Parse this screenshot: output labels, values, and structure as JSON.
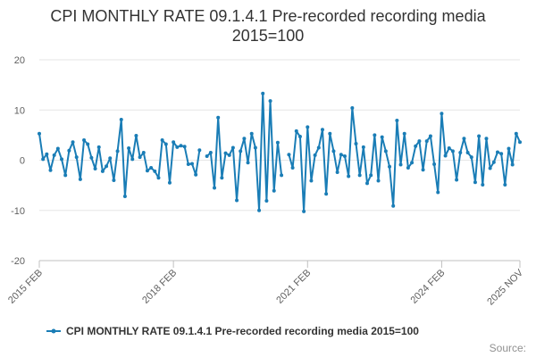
{
  "chart_data": {
    "type": "line",
    "title_lines": [
      "CPI MONTHLY RATE 09.1.4.1 Pre-recorded recording media",
      "2015=100"
    ],
    "ylim": [
      -20,
      20
    ],
    "yticks": [
      "20",
      "10",
      "0",
      "-10",
      "-20"
    ],
    "xtick_labels": [
      "2015 FEB",
      "2018 FEB",
      "2021 FEB",
      "2024 FEB",
      "2025 NOV"
    ],
    "xtick_month_index": [
      0,
      36,
      72,
      108,
      129
    ],
    "series": [
      {
        "name": "CPI MONTHLY RATE 09.1.4.1 Pre-recorded recording media 2015=100",
        "color": "#1a7db6",
        "start": "2015 FEB",
        "values": [
          5.3,
          0.2,
          1.2,
          -2.0,
          1.0,
          2.3,
          0.2,
          -3.0,
          1.9,
          3.6,
          0.6,
          -3.8,
          4.0,
          3.2,
          0.5,
          -1.7,
          2.6,
          -2.2,
          -1.2,
          0.4,
          -4.0,
          1.8,
          8.1,
          -7.2,
          2.4,
          0.2,
          4.9,
          0.6,
          1.5,
          -2.1,
          -1.5,
          -2.2,
          -3.5,
          4.0,
          3.2,
          -4.5,
          3.6,
          2.6,
          2.9,
          2.7,
          -0.8,
          -0.7,
          -2.9,
          2.0,
          null,
          0.8,
          1.5,
          -5.5,
          8.5,
          -3.5,
          1.4,
          1.0,
          2.5,
          -8.0,
          1.8,
          4.3,
          -0.5,
          5.3,
          2.5,
          -10.0,
          13.3,
          -8.1,
          11.8,
          -6.1,
          3.5,
          -3.0,
          null,
          1.1,
          -1.5,
          5.8,
          4.7,
          -10.2,
          6.6,
          -4.1,
          1.0,
          2.5,
          6.1,
          -6.7,
          5.3,
          1.8,
          -2.4,
          1.1,
          0.8,
          -3.2,
          10.4,
          3.3,
          -3.0,
          2.6,
          -4.6,
          -3.0,
          5.0,
          -4.1,
          4.6,
          1.8,
          -1.3,
          -9.1,
          7.9,
          -0.9,
          5.3,
          -1.5,
          -0.5,
          2.8,
          3.8,
          -1.9,
          3.8,
          4.8,
          -0.8,
          -6.4,
          9.3,
          0.9,
          2.4,
          1.8,
          -3.9,
          1.5,
          4.3,
          1.5,
          0.6,
          -4.4,
          4.8,
          -4.9,
          4.3,
          -1.6,
          -0.4,
          1.6,
          1.3,
          -4.9,
          2.3,
          -0.9,
          5.3,
          3.6
        ]
      }
    ],
    "legend": "bottom-center",
    "grid": true,
    "source_label": "Source:"
  }
}
